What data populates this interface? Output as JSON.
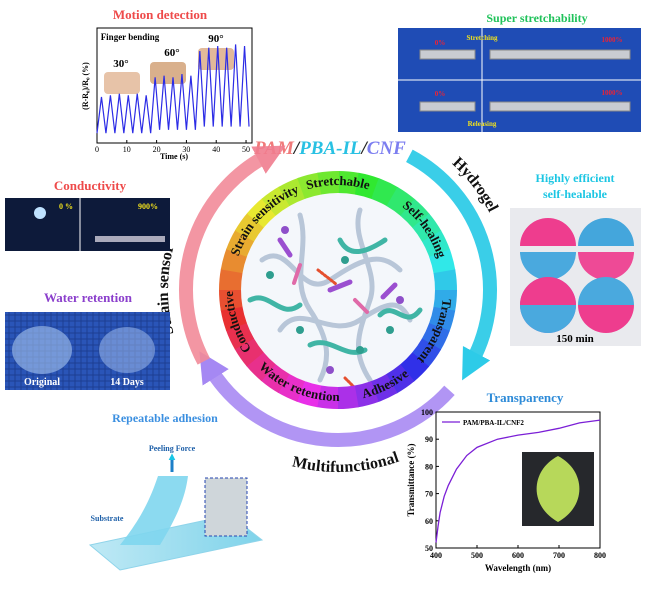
{
  "title": {
    "parts": [
      "PAM",
      "/",
      "PBA-IL",
      "/",
      "CNF"
    ]
  },
  "hub": {
    "properties": [
      "Stretchable",
      "Self-healing",
      "Transparent",
      "Adhesive",
      "Water retention",
      "Conductive",
      "Strain sensitivity"
    ]
  },
  "cycle": {
    "labels": [
      "Hydrogel",
      "Multifunctional",
      "Strain sensor"
    ]
  },
  "motion_detection": {
    "title": "Motion detection",
    "annotation": "Finger bending",
    "angles": [
      "30°",
      "60°",
      "90°"
    ],
    "chart": {
      "x_label": "Time (s)",
      "y_label": "(R-R₀)/R₀ (%)",
      "x": [
        0,
        1.5,
        3,
        4.5,
        6,
        7.5,
        9,
        10.5,
        12,
        13.5,
        15,
        16.5,
        18,
        19.5,
        21,
        22.5,
        24,
        25.5,
        27,
        28.5,
        30,
        31.5,
        33,
        34.5,
        36,
        37.5,
        39,
        40.5,
        42,
        43.5,
        45,
        46.5,
        48,
        49.5,
        51
      ],
      "values": [
        3,
        14,
        3,
        14.5,
        3,
        15,
        3,
        14.5,
        3,
        15,
        3,
        14.5,
        3,
        20,
        4,
        20.5,
        4,
        20,
        4,
        21,
        4,
        20.5,
        4,
        28,
        5,
        29,
        5,
        29.5,
        5,
        29,
        5,
        30,
        5,
        29.5,
        5
      ],
      "xlim": [
        0,
        52
      ],
      "xticks": [
        0,
        10,
        20,
        30,
        40,
        50
      ],
      "ylim": [
        0,
        35
      ]
    }
  },
  "stretchability": {
    "title": "Super stretchability",
    "actions": [
      "Stretching",
      "Releasing"
    ],
    "strains": [
      "0%",
      "1000%",
      "0%",
      "1000%"
    ]
  },
  "conductivity": {
    "title": "Conductivity",
    "strains": [
      "0 %",
      "900%"
    ]
  },
  "water_retention": {
    "title": "Water retention",
    "captions": [
      "Original",
      "14 Days"
    ]
  },
  "self_healing": {
    "title": [
      "Highly efficient",
      "self-healable"
    ],
    "caption": "150 min"
  },
  "adhesion": {
    "title": "Repeatable adhesion",
    "labels": [
      "Peeling Force",
      "Substrate"
    ]
  },
  "transparency": {
    "title": "Transparency",
    "chart": {
      "x_label": "Wavelength (nm)",
      "y_label": "Transmittance (%)",
      "series_name": "PAM/PBA-IL/CNF2",
      "color": "#7b1fd6",
      "x": [
        400,
        405,
        410,
        420,
        430,
        450,
        475,
        500,
        550,
        600,
        650,
        700,
        750,
        800
      ],
      "values": [
        52,
        58,
        63,
        69,
        73,
        79,
        84,
        87,
        90,
        91.5,
        92.5,
        94,
        96,
        97
      ],
      "xlim": [
        400,
        800
      ],
      "ylim": [
        50,
        100
      ],
      "xticks": [
        400,
        500,
        600,
        700,
        800
      ],
      "yticks": [
        50,
        60,
        70,
        80,
        90,
        100
      ]
    }
  }
}
